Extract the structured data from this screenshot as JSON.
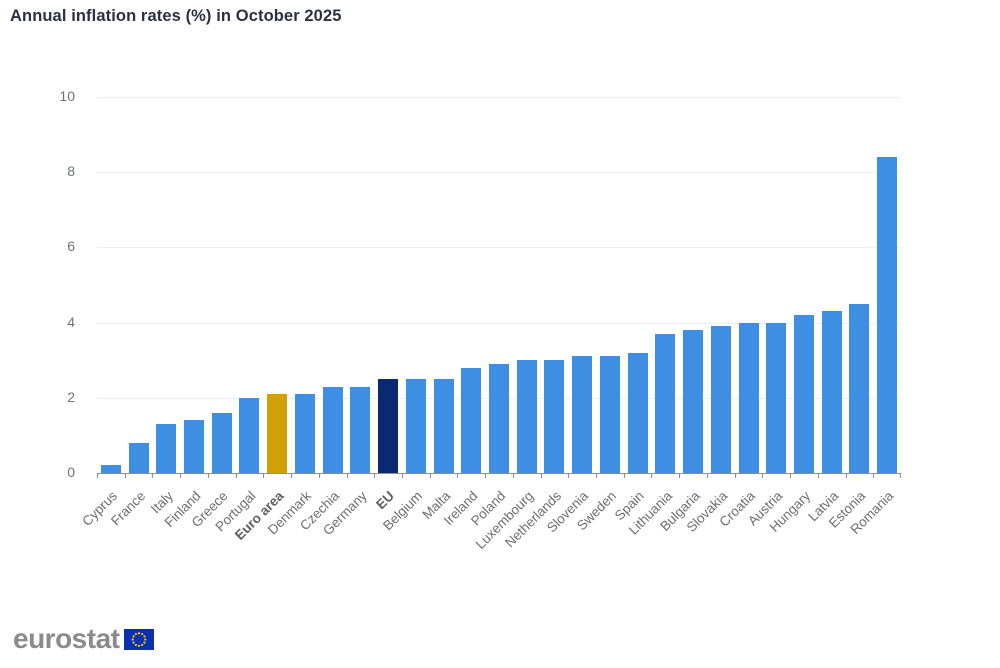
{
  "title": "Annual inflation rates (%) in October 2025",
  "logo": {
    "text": "eurostat"
  },
  "chart_data": {
    "type": "bar",
    "title": "Annual inflation rates (%) in October 2025",
    "categories": [
      "Cyprus",
      "France",
      "Italy",
      "Finland",
      "Greece",
      "Portugal",
      "Euro area",
      "Denmark",
      "Czechia",
      "Germany",
      "EU",
      "Belgium",
      "Malta",
      "Ireland",
      "Poland",
      "Luxembourg",
      "Netherlands",
      "Slovenia",
      "Sweden",
      "Spain",
      "Lithuania",
      "Bulgaria",
      "Slovakia",
      "Croatia",
      "Austria",
      "Hungary",
      "Latvia",
      "Estonia",
      "Romania"
    ],
    "values": [
      0.2,
      0.8,
      1.3,
      1.4,
      1.6,
      2.0,
      2.1,
      2.1,
      2.3,
      2.3,
      2.5,
      2.5,
      2.5,
      2.8,
      2.9,
      3.0,
      3.0,
      3.1,
      3.1,
      3.2,
      3.7,
      3.8,
      3.9,
      4.0,
      4.0,
      4.2,
      4.3,
      4.5,
      8.4
    ],
    "emphasized": [
      "Euro area",
      "EU"
    ],
    "bar_colors": {
      "default": "#3E8EE4",
      "Euro area": "#D2A106",
      "EU": "#0A2973"
    },
    "xlabel": "",
    "ylabel": "",
    "ylim": [
      0,
      10
    ],
    "yticks": [
      0,
      2,
      4,
      6,
      8,
      10
    ],
    "grid": "horizontal",
    "legend": "none",
    "colors": {
      "grid": "#e9edf5",
      "axis": "#8b9097",
      "tick_label": "#6f7379",
      "title": "#2b3143",
      "flag_blue": "#0930AE",
      "flag_stars": "#FFCC00"
    }
  }
}
